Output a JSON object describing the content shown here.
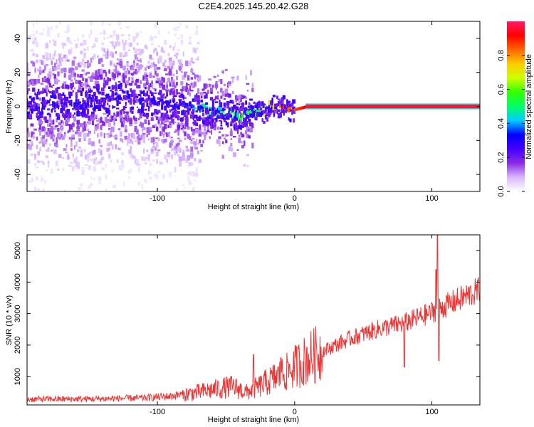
{
  "title": "C2E4.2025.145.20.42.G28",
  "chart_data": [
    {
      "type": "heatmap",
      "xlabel": "Height of straight line (km)",
      "ylabel": "Frequency (Hz)",
      "xlim": [
        -195,
        135
      ],
      "ylim": [
        -50,
        50
      ],
      "xticks": [
        -100,
        0,
        100
      ],
      "yticks": [
        -40,
        -20,
        0,
        20,
        40
      ],
      "colorbar": {
        "label": "Normalized spectral amplitude",
        "range": [
          0.0,
          1.0
        ],
        "ticks": [
          0.0,
          0.2,
          0.4,
          0.6,
          0.8
        ],
        "stops": [
          "#ffffff",
          "#d9b8ff",
          "#8a2be2",
          "#4400ff",
          "#0000ff",
          "#00ccff",
          "#00ff66",
          "#33ff00",
          "#ccff00",
          "#ffcc00",
          "#ff6600",
          "#ff0000",
          "#ff1a66"
        ]
      },
      "ridge": [
        {
          "x": -195,
          "f": 1,
          "amp": 0.15
        },
        {
          "x": -160,
          "f": 1,
          "amp": 0.18
        },
        {
          "x": -130,
          "f": 5,
          "amp": 0.2
        },
        {
          "x": -100,
          "f": 2,
          "amp": 0.22
        },
        {
          "x": -80,
          "f": -1,
          "amp": 0.3
        },
        {
          "x": -65,
          "f": -2,
          "amp": 0.45
        },
        {
          "x": -50,
          "f": -4,
          "amp": 0.5
        },
        {
          "x": -40,
          "f": -6,
          "amp": 0.5
        },
        {
          "x": -30,
          "f": -3,
          "amp": 0.55
        },
        {
          "x": -20,
          "f": -1,
          "amp": 0.65
        },
        {
          "x": -10,
          "f": 0,
          "amp": 0.85
        },
        {
          "x": 0,
          "f": -2,
          "amp": 0.85
        },
        {
          "x": 10,
          "f": 0,
          "amp": 0.95
        },
        {
          "x": 50,
          "f": 0,
          "amp": 0.95
        },
        {
          "x": 98,
          "f": 0,
          "amp": 0.95
        },
        {
          "x": 135,
          "f": 0,
          "amp": 0.95
        }
      ]
    },
    {
      "type": "line",
      "xlabel": "Height of straight line (km)",
      "ylabel": "SNR (10 * v/v)",
      "xlim": [
        -195,
        135
      ],
      "ylim": [
        100,
        5500
      ],
      "xticks": [
        -100,
        0,
        100
      ],
      "yticks": [
        1000,
        2000,
        3000,
        4000,
        5000
      ],
      "color": "#ee3333",
      "trend": [
        {
          "x": -195,
          "snr": 280
        },
        {
          "x": -150,
          "snr": 290
        },
        {
          "x": -110,
          "snr": 320
        },
        {
          "x": -90,
          "snr": 380
        },
        {
          "x": -70,
          "snr": 500
        },
        {
          "x": -55,
          "snr": 620
        },
        {
          "x": -45,
          "snr": 680
        },
        {
          "x": -35,
          "snr": 500
        },
        {
          "x": -25,
          "snr": 700
        },
        {
          "x": -15,
          "snr": 950
        },
        {
          "x": -5,
          "snr": 1150
        },
        {
          "x": 5,
          "snr": 1450
        },
        {
          "x": 20,
          "snr": 1800
        },
        {
          "x": 40,
          "snr": 2200
        },
        {
          "x": 60,
          "snr": 2500
        },
        {
          "x": 80,
          "snr": 2700
        },
        {
          "x": 95,
          "snr": 2950
        },
        {
          "x": 110,
          "snr": 3250
        },
        {
          "x": 125,
          "snr": 3550
        },
        {
          "x": 135,
          "snr": 3750
        }
      ],
      "spikes": [
        {
          "x": -30,
          "snr": 1700
        },
        {
          "x": -10,
          "snr": 1600
        },
        {
          "x": -5,
          "snr": 1450
        },
        {
          "x": 80,
          "snr": 1300
        },
        {
          "x": 98,
          "snr": 3250
        },
        {
          "x": 103,
          "snr": 4400
        },
        {
          "x": 104,
          "snr": 5500
        },
        {
          "x": 105,
          "snr": 1500
        }
      ]
    }
  ]
}
